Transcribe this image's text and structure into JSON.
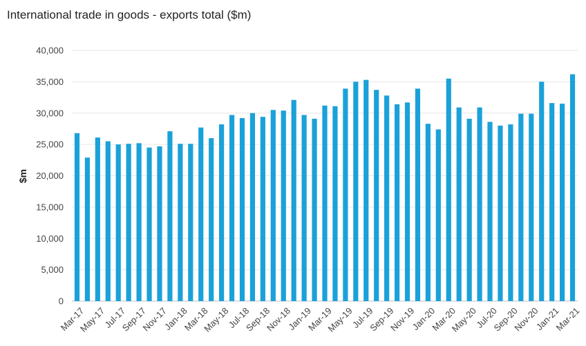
{
  "chart_data": {
    "type": "bar",
    "title": "International trade in goods - exports total ($m)",
    "xlabel": "",
    "ylabel": "$m",
    "ylim": [
      0,
      40000
    ],
    "yticks": [
      0,
      5000,
      10000,
      15000,
      20000,
      25000,
      30000,
      35000,
      40000
    ],
    "ytick_labels": [
      "0",
      "5,000",
      "10,000",
      "15,000",
      "20,000",
      "25,000",
      "30,000",
      "35,000",
      "40,000"
    ],
    "grid": "horizontal",
    "bar_color": "#1ba1d9",
    "categories": [
      "Mar-17",
      "Apr-17",
      "May-17",
      "Jun-17",
      "Jul-17",
      "Aug-17",
      "Sep-17",
      "Oct-17",
      "Nov-17",
      "Dec-17",
      "Jan-18",
      "Feb-18",
      "Mar-18",
      "Apr-18",
      "May-18",
      "Jun-18",
      "Jul-18",
      "Aug-18",
      "Sep-18",
      "Oct-18",
      "Nov-18",
      "Dec-18",
      "Jan-19",
      "Feb-19",
      "Mar-19",
      "Apr-19",
      "May-19",
      "Jun-19",
      "Jul-19",
      "Aug-19",
      "Sep-19",
      "Oct-19",
      "Nov-19",
      "Dec-19",
      "Jan-20",
      "Feb-20",
      "Mar-20",
      "Apr-20",
      "May-20",
      "Jun-20",
      "Jul-20",
      "Aug-20",
      "Sep-20",
      "Oct-20",
      "Nov-20",
      "Dec-20",
      "Jan-21",
      "Feb-21",
      "Mar-21"
    ],
    "shown_tick_labels": [
      "Mar-17",
      "May-17",
      "Jul-17",
      "Sep-17",
      "Nov-17",
      "Jan-18",
      "Mar-18",
      "May-18",
      "Jul-18",
      "Sep-18",
      "Nov-18",
      "Jan-19",
      "Mar-19",
      "May-19",
      "Jul-19",
      "Sep-19",
      "Nov-19",
      "Jan-20",
      "Mar-20",
      "May-20",
      "Jul-20",
      "Sep-20",
      "Nov-20",
      "Jan-21",
      "Mar-21"
    ],
    "values": [
      26800,
      22900,
      26100,
      25500,
      25000,
      25100,
      25200,
      24500,
      24700,
      27100,
      25100,
      25100,
      27700,
      26000,
      28200,
      29700,
      29200,
      30000,
      29400,
      30500,
      30400,
      32100,
      29700,
      29100,
      31200,
      31100,
      33900,
      35000,
      35300,
      33700,
      32800,
      31400,
      31700,
      33900,
      28300,
      27400,
      35500,
      30900,
      29100,
      30900,
      28600,
      28000,
      28200,
      29900,
      29900,
      35000,
      31600,
      31500,
      36200
    ]
  }
}
